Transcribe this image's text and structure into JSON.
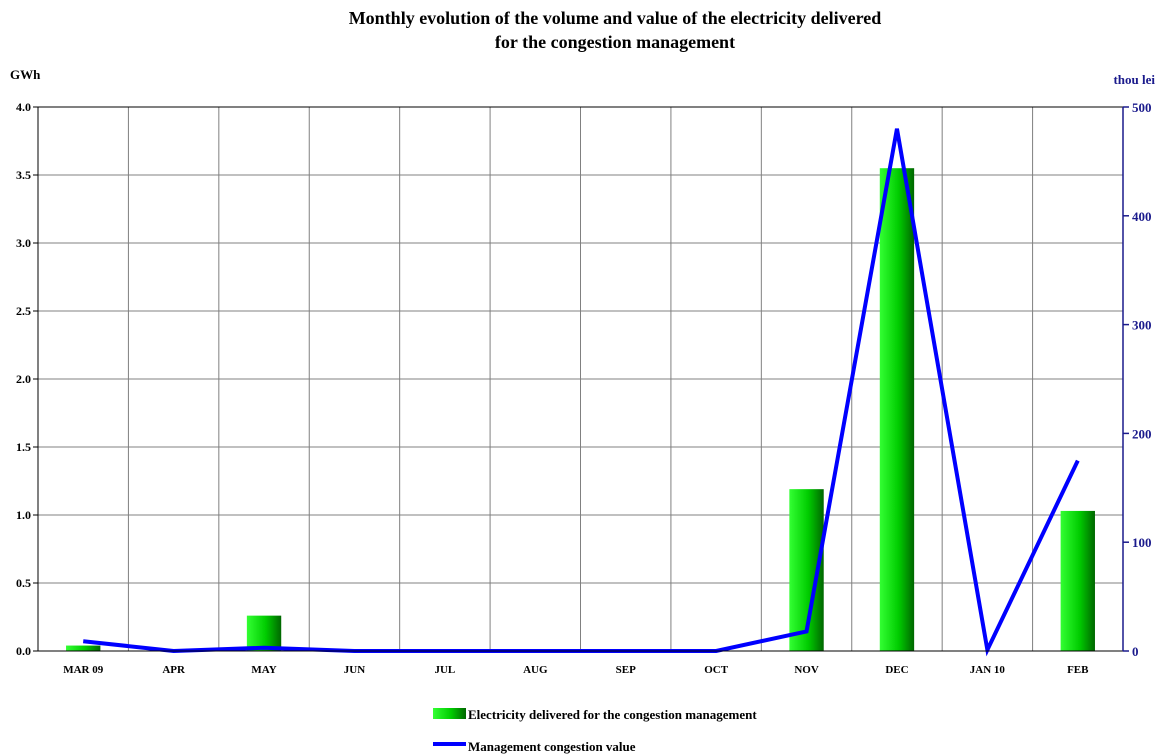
{
  "chart_data": {
    "type": "bar",
    "title": [
      "Monthly evolution of the volume and value of the electricity delivered",
      "for the congestion management"
    ],
    "y_left_label": "GWh",
    "y_right_label": "thou lei",
    "ylim_left": [
      0,
      4.0
    ],
    "ylim_right": [
      0,
      500
    ],
    "y_left_ticks": [
      "0.0",
      "0.5",
      "1.0",
      "1.5",
      "2.0",
      "2.5",
      "3.0",
      "3.5",
      "4.0"
    ],
    "y_right_ticks": [
      "0",
      "100",
      "200",
      "300",
      "400",
      "500"
    ],
    "categories": [
      "MAR 09",
      "APR",
      "MAY",
      "JUN",
      "JUL",
      "AUG",
      "SEP",
      "OCT",
      "NOV",
      "DEC",
      "JAN 10",
      "FEB"
    ],
    "grid": true,
    "legend_position": "bottom-center",
    "series": [
      {
        "name": "Electricity delivered for the congestion management",
        "type": "bar",
        "axis": "left",
        "values": [
          0.04,
          0,
          0.26,
          0,
          0,
          0,
          0,
          0,
          1.19,
          3.55,
          0,
          1.03
        ]
      },
      {
        "name": "Management congestion value",
        "type": "line",
        "axis": "right",
        "values": [
          9,
          0,
          3,
          0,
          0,
          0,
          0,
          0,
          18,
          480,
          1,
          175
        ]
      }
    ],
    "colors": {
      "bar_light": "#33ff33",
      "bar_mid": "#00cc00",
      "bar_dark": "#006600",
      "line": "#0000ff",
      "right_axis_text": "#1a1a8c",
      "grid": "#808080",
      "plot_border": "#000000"
    }
  }
}
